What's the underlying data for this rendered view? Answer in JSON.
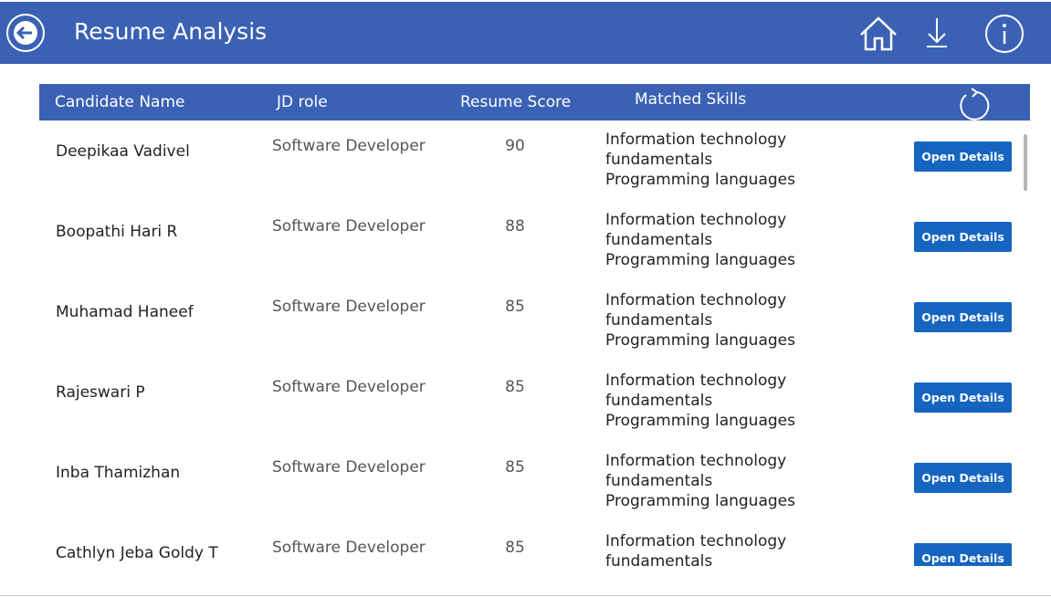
{
  "header": {
    "title": "Resume Analysis"
  },
  "table": {
    "columns": [
      "Candidate Name",
      "JD role",
      "Resume Score",
      "Matched Skills"
    ],
    "button_label": "Open Details",
    "rows": [
      {
        "name": "Deepikaa Vadivel",
        "role": "Software Developer",
        "score": 90,
        "skills": "Information technology fundamentals Programming languages"
      },
      {
        "name": "Boopathi Hari R",
        "role": "Software Developer",
        "score": 88,
        "skills": "Information technology fundamentals Programming languages"
      },
      {
        "name": "Muhamad Haneef",
        "role": "Software Developer",
        "score": 85,
        "skills": "Information technology fundamentals Programming languages"
      },
      {
        "name": "Rajeswari P",
        "role": "Software Developer",
        "score": 85,
        "skills": "Information technology fundamentals Programming languages"
      },
      {
        "name": "Inba Thamizhan",
        "role": "Software Developer",
        "score": 85,
        "skills": "Information technology fundamentals Programming languages"
      },
      {
        "name": "Cathlyn Jeba Goldy T",
        "role": "Software Developer",
        "score": 85,
        "skills": "Information technology fundamentals"
      }
    ]
  }
}
